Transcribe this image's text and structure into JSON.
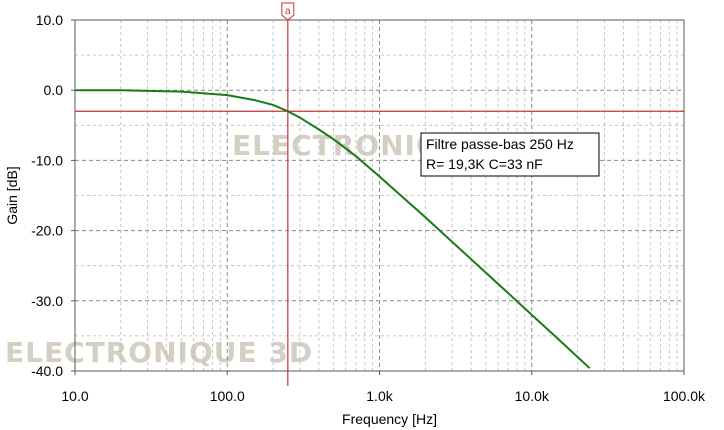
{
  "chart_data": {
    "type": "line",
    "x_scale": "log",
    "xlim": [
      10,
      100000
    ],
    "ylim": [
      -40,
      10
    ],
    "xlabel": "Frequency [Hz]",
    "ylabel": "Gain [dB]",
    "x_tick_labels": [
      "10.0",
      "100.0",
      "1.0k",
      "10.0k",
      "100.0k"
    ],
    "y_tick_labels": [
      "10.0",
      "0.0",
      "-10.0",
      "-20.0",
      "-30.0",
      "-40.0"
    ],
    "x_tick_values": [
      10,
      100,
      1000,
      10000,
      100000
    ],
    "y_tick_values": [
      10,
      0,
      -10,
      -20,
      -30,
      -40
    ],
    "grid": true,
    "series": [
      {
        "color": "#1a7a1a",
        "cutoff_hz": 250,
        "x": [
          10,
          20,
          50,
          100,
          150,
          200,
          250,
          300,
          400,
          500,
          700,
          1000,
          2000,
          3000,
          5000,
          7000,
          10000,
          15000,
          20000,
          24000
        ],
        "y": [
          0.0,
          0.0,
          -0.2,
          -0.7,
          -1.4,
          -2.1,
          -3.0,
          -3.9,
          -5.6,
          -7.0,
          -9.4,
          -12.3,
          -18.1,
          -21.6,
          -26.0,
          -28.9,
          -32.0,
          -35.5,
          -38.0,
          -39.6
        ]
      }
    ],
    "cursor": {
      "label": "a",
      "x": 250,
      "color": "#cc3333"
    },
    "reference_line": {
      "y": -3,
      "color": "#cc3333"
    },
    "annotation": {
      "lines": [
        "Filtre passe-bas 250 Hz",
        "R= 19,3K C=33 nF"
      ],
      "placement": "upper-right"
    },
    "watermark": "ELECTRONIQUE 3D"
  }
}
